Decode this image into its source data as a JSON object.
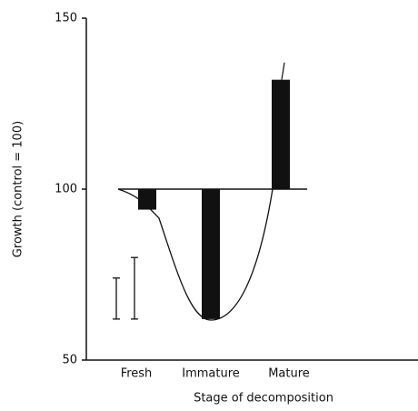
{
  "chart_data": {
    "type": "bar",
    "categories": [
      "Fresh",
      "Immature",
      "Mature"
    ],
    "values": [
      94,
      62,
      132
    ],
    "errors": [
      null,
      null,
      5
    ],
    "baseline": 100,
    "color": "#111111",
    "ylim": [
      50,
      150
    ],
    "yticks": [
      50,
      100,
      150
    ],
    "y_label": "Growth (control = 100)",
    "x_label": "Stage of decomposition",
    "scale_bars": [
      {
        "low": 62,
        "high": 74
      },
      {
        "low": 62,
        "high": 80
      }
    ]
  }
}
